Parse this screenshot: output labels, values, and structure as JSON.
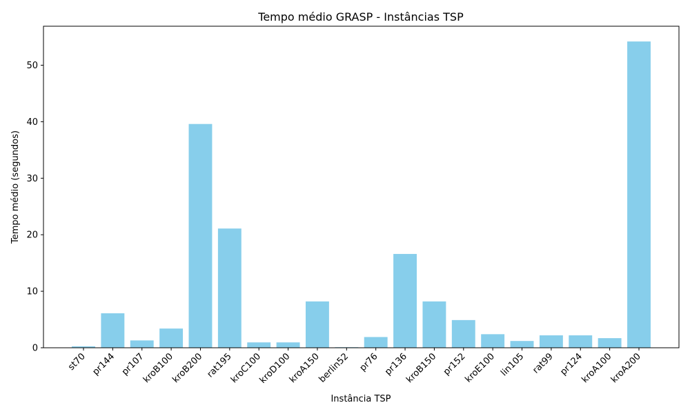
{
  "chart_data": {
    "type": "bar",
    "title": "Tempo médio GRASP - Instâncias TSP",
    "xlabel": "Instância TSP",
    "ylabel": "Tempo médio (segundos)",
    "categories": [
      "st70",
      "pr144",
      "pr107",
      "kroB100",
      "kroB200",
      "rat195",
      "kroC100",
      "kroD100",
      "kroA150",
      "berlin52",
      "pr76",
      "pr136",
      "kroB150",
      "pr152",
      "kroE100",
      "lin105",
      "rat99",
      "pr124",
      "kroA100",
      "kroA200"
    ],
    "values": [
      0.25,
      6.1,
      1.3,
      3.4,
      39.6,
      21.1,
      0.95,
      0.95,
      8.2,
      0.1,
      1.9,
      16.6,
      8.2,
      4.9,
      2.4,
      1.2,
      2.2,
      2.2,
      1.7,
      54.2
    ],
    "ylim": [
      0,
      56.9
    ],
    "yticks": [
      0,
      10,
      20,
      30,
      40,
      50
    ],
    "bar_color": "#87ceeb",
    "grid": false
  }
}
